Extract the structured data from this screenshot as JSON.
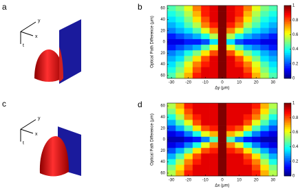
{
  "illustrations": [
    {
      "label": "a",
      "axes": [
        "y",
        "x",
        "t"
      ]
    },
    {
      "label": "c",
      "axes": [
        "y",
        "x",
        "t"
      ]
    }
  ],
  "chart_data": [
    {
      "type": "heatmap",
      "panel_label": "b",
      "colormap": "jet",
      "xlabel": "Δy (μm)",
      "ylabel": "Optical Path Difference (μm)",
      "x": [
        -30,
        -25,
        -20,
        -15,
        -10,
        -5,
        0,
        5,
        10,
        15,
        20,
        25,
        30
      ],
      "y": [
        60,
        50,
        40,
        30,
        20,
        10,
        0,
        -10,
        -20,
        -30,
        -40,
        -50,
        -60
      ],
      "z": [
        [
          0.45,
          0.5,
          0.6,
          0.75,
          0.85,
          0.9,
          1,
          0.9,
          0.85,
          0.75,
          0.6,
          0.5,
          0.45
        ],
        [
          0.4,
          0.45,
          0.55,
          0.7,
          0.85,
          0.9,
          1,
          0.9,
          0.85,
          0.7,
          0.55,
          0.45,
          0.4
        ],
        [
          0.35,
          0.4,
          0.5,
          0.65,
          0.8,
          0.9,
          1,
          0.9,
          0.8,
          0.65,
          0.5,
          0.4,
          0.35
        ],
        [
          0.3,
          0.35,
          0.45,
          0.55,
          0.75,
          0.85,
          1,
          0.85,
          0.75,
          0.55,
          0.45,
          0.35,
          0.3
        ],
        [
          0.25,
          0.3,
          0.35,
          0.45,
          0.6,
          0.75,
          1,
          0.75,
          0.6,
          0.45,
          0.35,
          0.3,
          0.25
        ],
        [
          0.15,
          0.2,
          0.25,
          0.3,
          0.4,
          0.55,
          1,
          0.55,
          0.4,
          0.3,
          0.25,
          0.2,
          0.15
        ],
        [
          0.1,
          0.1,
          0.15,
          0.15,
          0.2,
          0.35,
          1,
          0.35,
          0.2,
          0.15,
          0.15,
          0.1,
          0.1
        ],
        [
          0.15,
          0.2,
          0.25,
          0.3,
          0.45,
          0.6,
          1,
          0.6,
          0.45,
          0.3,
          0.25,
          0.2,
          0.15
        ],
        [
          0.25,
          0.3,
          0.4,
          0.5,
          0.65,
          0.8,
          1,
          0.8,
          0.65,
          0.5,
          0.4,
          0.3,
          0.25
        ],
        [
          0.3,
          0.35,
          0.5,
          0.65,
          0.8,
          0.9,
          1,
          0.9,
          0.8,
          0.65,
          0.5,
          0.35,
          0.3
        ],
        [
          0.35,
          0.45,
          0.6,
          0.75,
          0.85,
          0.9,
          1,
          0.9,
          0.85,
          0.75,
          0.6,
          0.45,
          0.35
        ],
        [
          0.4,
          0.5,
          0.65,
          0.8,
          0.9,
          0.9,
          1,
          0.9,
          0.9,
          0.8,
          0.65,
          0.5,
          0.4
        ],
        [
          0.45,
          0.55,
          0.7,
          0.85,
          0.9,
          0.9,
          1,
          0.9,
          0.9,
          0.85,
          0.7,
          0.55,
          0.45
        ]
      ],
      "xlim": [
        -32.5,
        32.5
      ],
      "xticks": [
        -30,
        -20,
        -10,
        0,
        10,
        20,
        30
      ],
      "ylim": [
        -65,
        65
      ],
      "yticks": [
        60,
        40,
        20,
        0,
        {
          "value": -20,
          "label": "20"
        },
        {
          "value": -40,
          "label": "40"
        },
        {
          "value": -60,
          "label": "60"
        }
      ],
      "zlim": [
        0,
        1
      ],
      "zticks": [
        0,
        0.2,
        0.4,
        0.6,
        0.8,
        1
      ]
    },
    {
      "type": "heatmap",
      "panel_label": "d",
      "colormap": "jet",
      "xlabel": "Δx (μm)",
      "ylabel": "Optical Path Difference (μm)",
      "x": [
        -30,
        -25,
        -20,
        -15,
        -10,
        -5,
        0,
        5,
        10,
        15,
        20,
        25,
        30
      ],
      "y": [
        60,
        50,
        40,
        30,
        20,
        10,
        0,
        -10,
        -20,
        -30,
        -40,
        -50,
        -60
      ],
      "z": [
        [
          0.55,
          0.7,
          0.85,
          0.9,
          0.9,
          0.9,
          1,
          0.9,
          0.9,
          0.9,
          0.85,
          0.7,
          0.55
        ],
        [
          0.5,
          0.65,
          0.8,
          0.9,
          0.9,
          0.9,
          1,
          0.9,
          0.9,
          0.9,
          0.8,
          0.65,
          0.5
        ],
        [
          0.4,
          0.55,
          0.75,
          0.85,
          0.9,
          0.9,
          1,
          0.9,
          0.9,
          0.85,
          0.75,
          0.55,
          0.4
        ],
        [
          0.3,
          0.45,
          0.6,
          0.8,
          0.9,
          0.9,
          1,
          0.9,
          0.9,
          0.8,
          0.6,
          0.45,
          0.3
        ],
        [
          0.2,
          0.3,
          0.45,
          0.65,
          0.8,
          0.85,
          1,
          0.85,
          0.8,
          0.65,
          0.45,
          0.3,
          0.2
        ],
        [
          0.1,
          0.15,
          0.25,
          0.4,
          0.6,
          0.7,
          1,
          0.7,
          0.6,
          0.4,
          0.25,
          0.15,
          0.1
        ],
        [
          0.05,
          0.05,
          0.1,
          0.15,
          0.25,
          0.45,
          1,
          0.45,
          0.25,
          0.15,
          0.1,
          0.05,
          0.05
        ],
        [
          0.1,
          0.15,
          0.25,
          0.4,
          0.6,
          0.75,
          1,
          0.75,
          0.6,
          0.4,
          0.25,
          0.15,
          0.1
        ],
        [
          0.2,
          0.3,
          0.45,
          0.65,
          0.8,
          0.85,
          1,
          0.85,
          0.8,
          0.65,
          0.45,
          0.3,
          0.2
        ],
        [
          0.3,
          0.45,
          0.65,
          0.8,
          0.9,
          0.9,
          1,
          0.9,
          0.9,
          0.8,
          0.65,
          0.45,
          0.3
        ],
        [
          0.4,
          0.55,
          0.75,
          0.85,
          0.9,
          0.9,
          1,
          0.9,
          0.9,
          0.85,
          0.75,
          0.55,
          0.4
        ],
        [
          0.5,
          0.65,
          0.8,
          0.9,
          0.9,
          0.9,
          1,
          0.9,
          0.9,
          0.9,
          0.8,
          0.65,
          0.5
        ],
        [
          0.55,
          0.7,
          0.85,
          0.9,
          0.9,
          0.9,
          1,
          0.9,
          0.9,
          0.9,
          0.85,
          0.7,
          0.55
        ]
      ],
      "xlim": [
        -32.5,
        32.5
      ],
      "xticks": [
        -30,
        -20,
        -10,
        0,
        10,
        20,
        30
      ],
      "ylim": [
        -65,
        65
      ],
      "yticks": [
        60,
        40,
        20,
        0,
        {
          "value": -20,
          "label": "20"
        },
        {
          "value": -40,
          "label": "40"
        },
        {
          "value": -60,
          "label": "60"
        }
      ],
      "zlim": [
        0,
        1
      ],
      "zticks": [
        0,
        0.2,
        0.4,
        0.6,
        0.8,
        1
      ]
    }
  ]
}
